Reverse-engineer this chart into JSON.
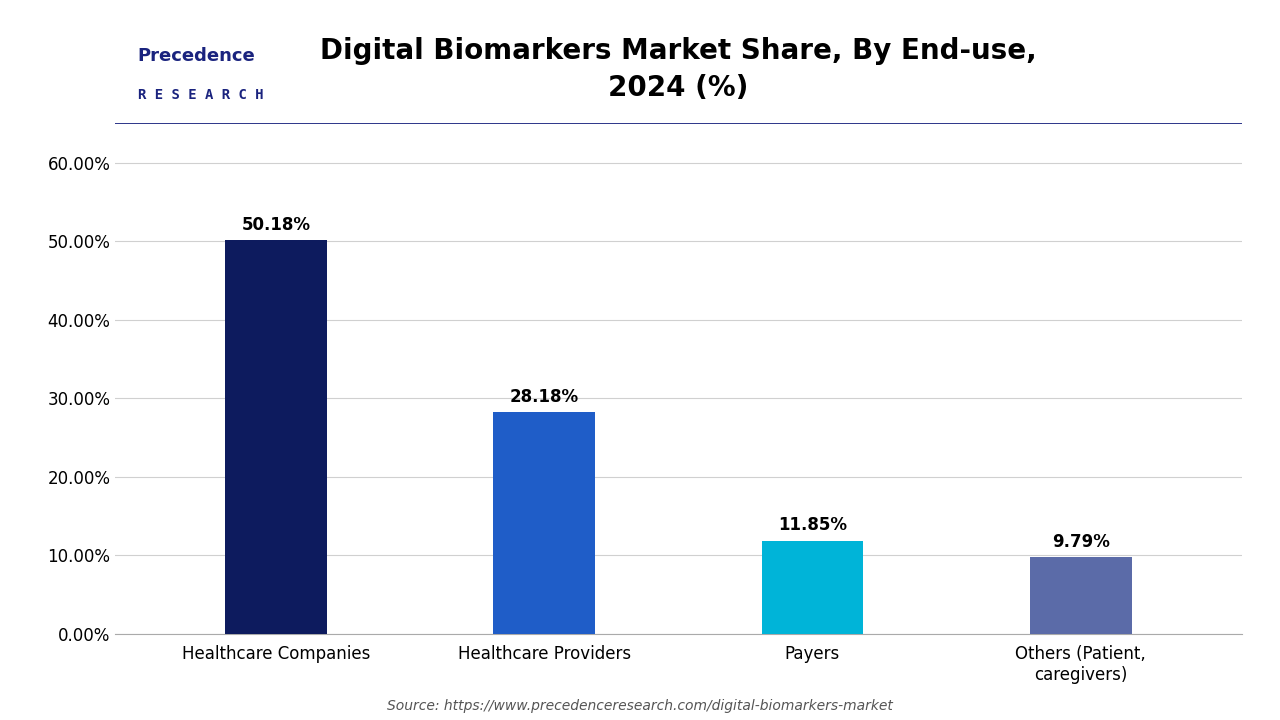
{
  "title": "Digital Biomarkers Market Share, By End-use,\n2024 (%)",
  "categories": [
    "Healthcare Companies",
    "Healthcare Providers",
    "Payers",
    "Others (Patient,\ncaregivers)"
  ],
  "values": [
    50.18,
    28.18,
    11.85,
    9.79
  ],
  "bar_colors": [
    "#0d1b5e",
    "#1f5dc8",
    "#00b4d8",
    "#5b6ba8"
  ],
  "label_values": [
    "50.18%",
    "28.18%",
    "11.85%",
    "9.79%"
  ],
  "ylim": [
    0,
    65
  ],
  "yticks": [
    0,
    10,
    20,
    30,
    40,
    50,
    60
  ],
  "ytick_labels": [
    "0.00%",
    "10.00%",
    "20.00%",
    "30.00%",
    "40.00%",
    "50.00%",
    "60.00%"
  ],
  "source_text": "Source: https://www.precedenceresearch.com/digital-biomarkers-market",
  "background_color": "#ffffff",
  "title_fontsize": 20,
  "tick_fontsize": 12,
  "label_fontsize": 12,
  "bar_width": 0.38,
  "logo_text_line1": "Precedence",
  "logo_text_line2": "R E S E A R C H",
  "logo_color": "#1a237e",
  "header_line_color": "#1a237e",
  "grid_color": "#d0d0d0",
  "source_fontsize": 10,
  "source_color": "#555555"
}
